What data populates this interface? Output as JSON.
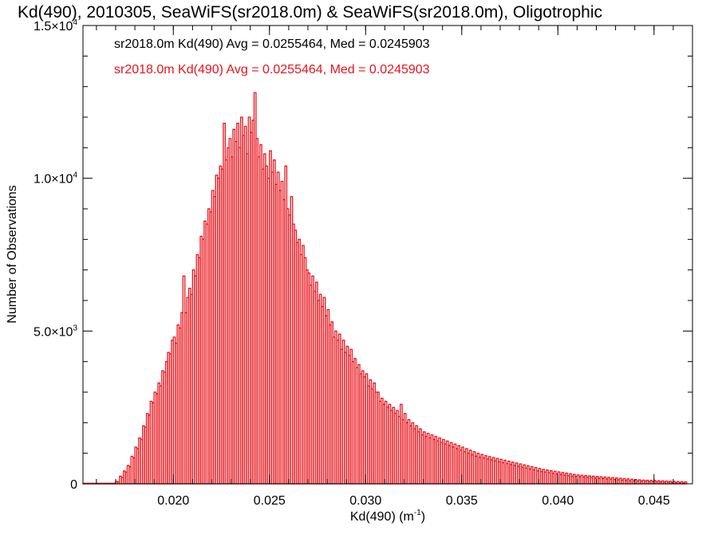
{
  "chart_data": {
    "type": "bar",
    "title": "Kd(490), 2010305, SeaWiFS(sr2018.0m) & SeaWiFS(sr2018.0m), Oligotrophic",
    "xlabel": "Kd(490) (m",
    "xlabel_sup": "-1",
    "xlabel_close": ")",
    "ylabel": "Number of Observations",
    "xlim": [
      0.0153,
      0.047
    ],
    "ylim": [
      0,
      15000
    ],
    "x_ticks": [
      {
        "value": 0.02,
        "label": "0.020"
      },
      {
        "value": 0.025,
        "label": "0.025"
      },
      {
        "value": 0.03,
        "label": "0.030"
      },
      {
        "value": 0.035,
        "label": "0.035"
      },
      {
        "value": 0.04,
        "label": "0.040"
      },
      {
        "value": 0.045,
        "label": "0.045"
      }
    ],
    "y_ticks": [
      {
        "value": 0,
        "mantissa": "0",
        "exp": ""
      },
      {
        "value": 5000,
        "mantissa": "5.0×10",
        "exp": "3"
      },
      {
        "value": 10000,
        "mantissa": "1.0×10",
        "exp": "4"
      },
      {
        "value": 15000,
        "mantissa": "1.5×10",
        "exp": "4"
      }
    ],
    "legend": [
      {
        "text": "sr2018.0m Kd(490) Avg = 0.0255464, Med = 0.0245903",
        "color": "#000000"
      },
      {
        "text": "sr2018.0m Kd(490) Avg = 0.0255464, Med = 0.0245903",
        "color": "#e8141c"
      }
    ],
    "legend_placement": "top-left",
    "grid": false,
    "bin_width": 0.0001,
    "series": [
      {
        "name": "sr2018.0m Kd(490)",
        "color": "#e8141c",
        "x_start": 0.0153,
        "values": [
          0,
          0,
          0,
          0,
          0,
          0,
          0,
          0,
          0,
          0,
          0,
          0,
          0,
          0,
          0,
          0,
          20,
          80,
          60,
          250,
          200,
          420,
          380,
          600,
          560,
          900,
          850,
          1200,
          1150,
          1500,
          1450,
          1900,
          1850,
          2300,
          2250,
          2700,
          2650,
          3000,
          2950,
          3300,
          3200,
          3700,
          3650,
          4000,
          4300,
          4250,
          4700,
          4800,
          4600,
          5200,
          5100,
          5600,
          6800,
          5600,
          6100,
          6400,
          6200,
          7000,
          6800,
          7500,
          7400,
          8100,
          8000,
          8600,
          8500,
          9000,
          8900,
          9600,
          9400,
          10100,
          10000,
          10400,
          10300,
          11800,
          10600,
          11000,
          11300,
          10700,
          11600,
          11200,
          11800,
          11000,
          12000,
          11400,
          11700,
          10800,
          12000,
          11500,
          11900,
          12800,
          11300,
          10700,
          11100,
          10300,
          10800,
          10400,
          10000,
          10900,
          10200,
          10600,
          9800,
          10200,
          9600,
          9900,
          9300,
          10400,
          9000,
          8800,
          9400,
          8500,
          8300,
          7900,
          8000,
          7500,
          7800,
          7400,
          7000,
          6900,
          6500,
          6800,
          6300,
          6600,
          6000,
          6200,
          5800,
          6100,
          5500,
          5700,
          5200,
          5300,
          4800,
          5000,
          4700,
          4900,
          4400,
          4700,
          4300,
          4500,
          4200,
          4400,
          4000,
          4100,
          3800,
          3900,
          3600,
          3700,
          3500,
          3600,
          3200,
          3400,
          3100,
          3300,
          3000,
          3000,
          2700,
          2800,
          2600,
          2700,
          2500,
          2600,
          2400,
          2500,
          2300,
          2400,
          2200,
          2600,
          2100,
          2300,
          2000,
          2100,
          1900,
          2000,
          1800,
          1900,
          1700,
          1800,
          1600,
          1700,
          1550,
          1650,
          1500,
          1600,
          1450,
          1550,
          1400,
          1500,
          1350,
          1450,
          1300,
          1400,
          1250,
          1350,
          1200,
          1300,
          1150,
          1250,
          1100,
          1200,
          1050,
          1150,
          1000,
          1100,
          950,
          1050,
          900,
          1000,
          870,
          960,
          840,
          920,
          810,
          890,
          780,
          860,
          750,
          830,
          720,
          800,
          690,
          770,
          660,
          740,
          630,
          710,
          600,
          680,
          570,
          650,
          540,
          620,
          510,
          590,
          480,
          560,
          450,
          530,
          420,
          500,
          400,
          470,
          380,
          450,
          360,
          430,
          340,
          410,
          320,
          390,
          300,
          370,
          280,
          350,
          260,
          330,
          250,
          310,
          240,
          290,
          230,
          280,
          220,
          270,
          210,
          260,
          200,
          250,
          190,
          240,
          180,
          230,
          170,
          220,
          160,
          210,
          150,
          200,
          140,
          190,
          130,
          180,
          120,
          170,
          110,
          160,
          100,
          150,
          95,
          140,
          90,
          130,
          85,
          120,
          80,
          115,
          75,
          110,
          70,
          105,
          65,
          100,
          60,
          95,
          55,
          90,
          50,
          85,
          45,
          80,
          40,
          75,
          35,
          70,
          30,
          65
        ]
      }
    ]
  }
}
